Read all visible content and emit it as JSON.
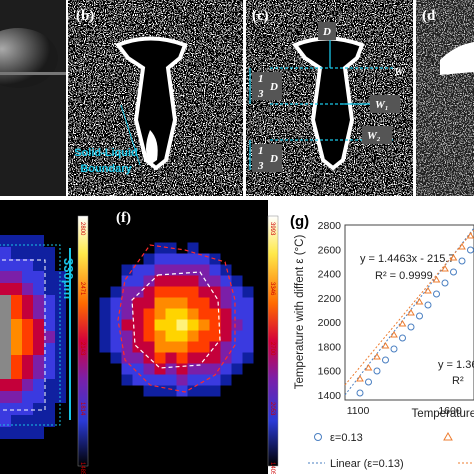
{
  "panel_b": {
    "label": "(b)",
    "annotation_lines": [
      "Solid-Liquid",
      "Boundary"
    ]
  },
  "panel_c": {
    "label": "(c)",
    "depth": "D",
    "width": "W",
    "width_1": "W₁",
    "width_2": "W₂",
    "third_top": {
      "num": "1",
      "den": "3",
      "sym": "D"
    },
    "third_bottom": {
      "num": "1",
      "den": "3",
      "sym": "D"
    }
  },
  "panel_d": {
    "label": "(d"
  },
  "panel_e": {
    "scale_label": "330μm",
    "colorbar_ticks": [
      "2800",
      "2471",
      "2143",
      "1814",
      "1485.51"
    ]
  },
  "panel_f": {
    "label": "(f)",
    "colorbar_ticks": [
      "3993",
      "3346",
      "2700",
      "2053",
      "1405.51"
    ]
  },
  "panel_g": {
    "label": "(g)",
    "fit_1": {
      "equation": "y = 1.4463x - 215.7",
      "r2": "R² = 0.9999"
    },
    "fit_2": {
      "equation": "y = 1.36",
      "r2": "R²"
    },
    "y_axis_label": "Temperature with diffent ε (°C)",
    "x_axis_label": "Temperature ε",
    "y_ticks": [
      "2800",
      "2600",
      "2400",
      "2200",
      "2000",
      "1800",
      "1600",
      "1400"
    ],
    "x_ticks": [
      "1100",
      "1600"
    ],
    "legend": [
      "ε=0.13",
      "Linear (ε=0.13)"
    ]
  }
}
